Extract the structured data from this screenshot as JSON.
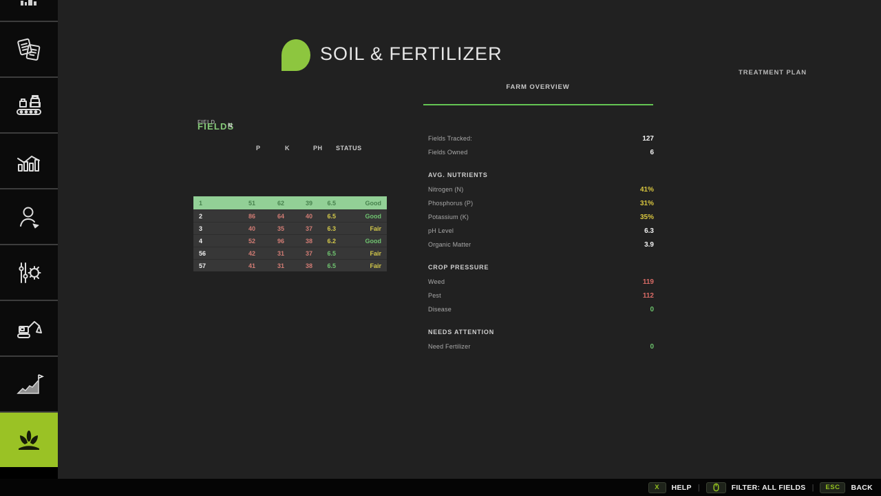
{
  "header": {
    "title": "SOIL & FERTILIZER"
  },
  "tabs": {
    "farm_overview": "FARM OVERVIEW",
    "treatment_plan": "TREATMENT PLAN"
  },
  "colors": {
    "accent_green": "#9ac225",
    "logo_green": "#8dc63f",
    "underline_green": "#64c553",
    "highlight_row": "#92d096",
    "value_yellow": "#d9c63f",
    "value_red": "#d96b66",
    "value_green": "#6cc36c"
  },
  "sidebar": {
    "items": [
      {
        "id": "top-partial",
        "icon": "partial-icon",
        "active": false
      },
      {
        "id": "contracts",
        "icon": "documents-icon",
        "active": false
      },
      {
        "id": "production",
        "icon": "production-icon",
        "active": false
      },
      {
        "id": "statistics",
        "icon": "statistics-icon",
        "active": false
      },
      {
        "id": "player",
        "icon": "player-icon",
        "active": false
      },
      {
        "id": "settings",
        "icon": "sliders-gear-icon",
        "active": false
      },
      {
        "id": "construction",
        "icon": "excavator-icon",
        "active": false
      },
      {
        "id": "growth",
        "icon": "growth-icon",
        "active": false
      },
      {
        "id": "soil-fertilizer",
        "icon": "sprout-icon",
        "active": true
      }
    ]
  },
  "fields_panel": {
    "title": "FIELDS",
    "col_field": "FIELD",
    "col_n": "N",
    "col_p": "P",
    "col_k": "K",
    "col_ph": "PH",
    "col_status": "STATUS",
    "rows": [
      {
        "field": "1",
        "n": "51",
        "p": "62",
        "k": "39",
        "ph": "6.5",
        "status": "Good",
        "highlight": true,
        "ph_color": "dark",
        "status_color": "dark"
      },
      {
        "field": "2",
        "n": "86",
        "p": "64",
        "k": "40",
        "ph": "6.5",
        "status": "Good",
        "highlight": false,
        "ph_color": "yellow",
        "status_color": "green"
      },
      {
        "field": "3",
        "n": "40",
        "p": "35",
        "k": "37",
        "ph": "6.3",
        "status": "Fair",
        "highlight": false,
        "ph_color": "yellow",
        "status_color": "yellow"
      },
      {
        "field": "4",
        "n": "52",
        "p": "96",
        "k": "38",
        "ph": "6.2",
        "status": "Good",
        "highlight": false,
        "ph_color": "yellow",
        "status_color": "green"
      },
      {
        "field": "56",
        "n": "42",
        "p": "31",
        "k": "37",
        "ph": "6.5",
        "status": "Fair",
        "highlight": false,
        "ph_color": "green",
        "status_color": "yellow"
      },
      {
        "field": "57",
        "n": "41",
        "p": "31",
        "k": "38",
        "ph": "6.5",
        "status": "Fair",
        "highlight": false,
        "ph_color": "green",
        "status_color": "yellow"
      }
    ]
  },
  "overview": {
    "rows": [
      {
        "type": "stat",
        "label": "Fields Tracked:",
        "value": "127",
        "color": "white"
      },
      {
        "type": "stat",
        "label": "Fields Owned",
        "value": "6",
        "color": "white"
      },
      {
        "type": "section",
        "label": "AVG. NUTRIENTS"
      },
      {
        "type": "stat",
        "label": "Nitrogen (N)",
        "value": "41%",
        "color": "yellow"
      },
      {
        "type": "stat",
        "label": "Phosphorus (P)",
        "value": "31%",
        "color": "yellow"
      },
      {
        "type": "stat",
        "label": "Potassium (K)",
        "value": "35%",
        "color": "yellow"
      },
      {
        "type": "stat",
        "label": "pH Level",
        "value": "6.3",
        "color": "white"
      },
      {
        "type": "stat",
        "label": "Organic Matter",
        "value": "3.9",
        "color": "white"
      },
      {
        "type": "section",
        "label": "CROP PRESSURE"
      },
      {
        "type": "stat",
        "label": "Weed",
        "value": "119",
        "color": "red"
      },
      {
        "type": "stat",
        "label": "Pest",
        "value": "112",
        "color": "red"
      },
      {
        "type": "stat",
        "label": "Disease",
        "value": "0",
        "color": "green"
      },
      {
        "type": "section",
        "label": "NEEDS ATTENTION"
      },
      {
        "type": "stat",
        "label": "Need Fertilizer",
        "value": "0",
        "color": "green"
      }
    ]
  },
  "bottombar": {
    "help_key": "X",
    "help_label": "HELP",
    "filter_label": "FILTER: ALL FIELDS",
    "back_key": "ESC",
    "back_label": "BACK",
    "separator": "|"
  }
}
